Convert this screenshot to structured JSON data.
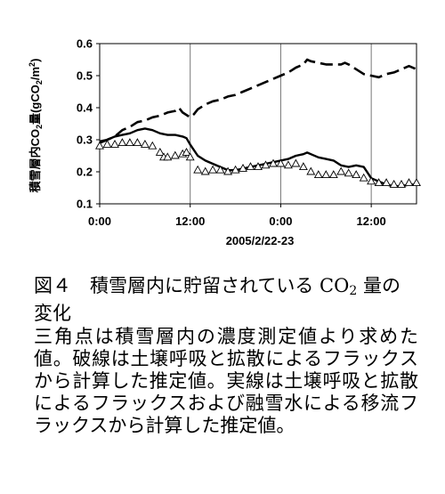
{
  "chart_data": {
    "type": "line",
    "ylabel": "積雪層内CO2量(gCO2/m2)",
    "xlabel": "2005/2/22-23",
    "ylim": [
      0.1,
      0.6
    ],
    "y_ticks": [
      "0.1",
      "0.2",
      "0.3",
      "0.4",
      "0.5",
      "0.6"
    ],
    "xlim": [
      0,
      42
    ],
    "x_ticks": [
      {
        "x": 0,
        "label": "0:00"
      },
      {
        "x": 12,
        "label": "12:00"
      },
      {
        "x": 24,
        "label": "0:00"
      },
      {
        "x": 36,
        "label": "12:00"
      }
    ],
    "vgrid_x": [
      12,
      24,
      36
    ],
    "legend": "none",
    "series": [
      {
        "style": "dashed",
        "points": [
          [
            0,
            0.29
          ],
          [
            1,
            0.3
          ],
          [
            2,
            0.31
          ],
          [
            3,
            0.33
          ],
          [
            4,
            0.34
          ],
          [
            5,
            0.355
          ],
          [
            6,
            0.36
          ],
          [
            7,
            0.37
          ],
          [
            8,
            0.375
          ],
          [
            9,
            0.385
          ],
          [
            10,
            0.39
          ],
          [
            10.5,
            0.4
          ],
          [
            11,
            0.385
          ],
          [
            12,
            0.37
          ],
          [
            12.5,
            0.38
          ],
          [
            13,
            0.395
          ],
          [
            14,
            0.41
          ],
          [
            15,
            0.42
          ],
          [
            16,
            0.425
          ],
          [
            17,
            0.435
          ],
          [
            18,
            0.44
          ],
          [
            19,
            0.45
          ],
          [
            20,
            0.46
          ],
          [
            21,
            0.47
          ],
          [
            22,
            0.48
          ],
          [
            23,
            0.49
          ],
          [
            24,
            0.5
          ],
          [
            25,
            0.51
          ],
          [
            26,
            0.525
          ],
          [
            27,
            0.535
          ],
          [
            27.5,
            0.55
          ],
          [
            28,
            0.545
          ],
          [
            29,
            0.54
          ],
          [
            30,
            0.535
          ],
          [
            31,
            0.535
          ],
          [
            32,
            0.535
          ],
          [
            32.5,
            0.54
          ],
          [
            33,
            0.535
          ],
          [
            34,
            0.52
          ],
          [
            35,
            0.505
          ],
          [
            36,
            0.5
          ],
          [
            37,
            0.495
          ],
          [
            38,
            0.505
          ],
          [
            39,
            0.51
          ],
          [
            40,
            0.52
          ],
          [
            41,
            0.53
          ],
          [
            42,
            0.52
          ]
        ]
      },
      {
        "style": "solid",
        "points": [
          [
            0,
            0.295
          ],
          [
            1,
            0.3
          ],
          [
            2,
            0.31
          ],
          [
            3,
            0.315
          ],
          [
            4,
            0.32
          ],
          [
            5,
            0.33
          ],
          [
            6,
            0.335
          ],
          [
            7,
            0.33
          ],
          [
            8,
            0.32
          ],
          [
            9,
            0.315
          ],
          [
            10,
            0.315
          ],
          [
            11,
            0.31
          ],
          [
            11.5,
            0.305
          ],
          [
            12,
            0.285
          ],
          [
            13,
            0.25
          ],
          [
            14,
            0.235
          ],
          [
            15,
            0.225
          ],
          [
            16,
            0.215
          ],
          [
            17,
            0.205
          ],
          [
            18,
            0.205
          ],
          [
            19,
            0.21
          ],
          [
            20,
            0.215
          ],
          [
            21,
            0.22
          ],
          [
            22,
            0.225
          ],
          [
            23,
            0.23
          ],
          [
            24,
            0.235
          ],
          [
            25,
            0.24
          ],
          [
            26,
            0.25
          ],
          [
            27,
            0.255
          ],
          [
            27.5,
            0.26
          ],
          [
            28,
            0.255
          ],
          [
            29,
            0.245
          ],
          [
            30,
            0.24
          ],
          [
            31,
            0.235
          ],
          [
            32,
            0.22
          ],
          [
            33,
            0.215
          ],
          [
            34,
            0.22
          ],
          [
            35,
            0.215
          ],
          [
            36,
            0.18
          ],
          [
            37,
            0.17
          ],
          [
            38,
            0.16
          ],
          [
            39,
            0.155
          ],
          [
            40,
            0.155
          ],
          [
            41,
            0.16
          ],
          [
            42,
            0.16
          ]
        ]
      },
      {
        "style": "triangles",
        "points": [
          [
            0,
            0.28
          ],
          [
            1,
            0.285
          ],
          [
            2,
            0.285
          ],
          [
            3,
            0.29
          ],
          [
            4,
            0.29
          ],
          [
            5,
            0.29
          ],
          [
            6,
            0.285
          ],
          [
            7,
            0.28
          ],
          [
            8,
            0.26
          ],
          [
            8.5,
            0.245
          ],
          [
            9,
            0.245
          ],
          [
            10,
            0.25
          ],
          [
            11,
            0.255
          ],
          [
            11.5,
            0.26
          ],
          [
            12,
            0.245
          ],
          [
            13,
            0.205
          ],
          [
            14,
            0.2
          ],
          [
            15,
            0.205
          ],
          [
            16,
            0.205
          ],
          [
            17,
            0.2
          ],
          [
            18,
            0.205
          ],
          [
            19,
            0.21
          ],
          [
            20,
            0.215
          ],
          [
            21,
            0.215
          ],
          [
            22,
            0.22
          ],
          [
            23,
            0.225
          ],
          [
            24,
            0.225
          ],
          [
            25,
            0.22
          ],
          [
            26,
            0.225
          ],
          [
            27,
            0.215
          ],
          [
            28,
            0.2
          ],
          [
            29,
            0.19
          ],
          [
            30,
            0.19
          ],
          [
            31,
            0.19
          ],
          [
            32,
            0.2
          ],
          [
            33,
            0.195
          ],
          [
            34,
            0.19
          ],
          [
            35,
            0.18
          ],
          [
            36,
            0.17
          ],
          [
            37,
            0.165
          ],
          [
            38,
            0.165
          ],
          [
            39,
            0.16
          ],
          [
            40,
            0.16
          ],
          [
            41,
            0.165
          ],
          [
            42,
            0.165
          ]
        ]
      }
    ]
  },
  "caption": {
    "title_prefix": "図４　積雪層内に貯留されている ",
    "title_chem": "CO",
    "title_sub": "2",
    "title_suffix": " 量の変化",
    "body": "三角点は積雪層内の濃度測定値より求めた値。破線は土壌呼吸と拡散によるフラックスから計算した推定値。実線は土壌呼吸と拡散によるフラックスおよび融雪水による移流フラックスから計算した推定値。"
  }
}
